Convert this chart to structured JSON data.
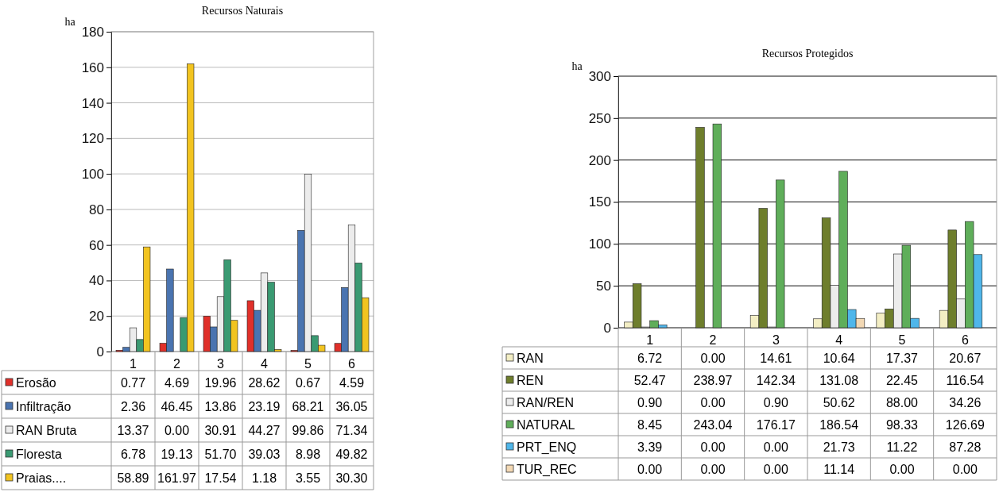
{
  "chart_data": [
    {
      "type": "bar",
      "title": "Recursos Naturais",
      "ylabel": "ha",
      "categories": [
        "1",
        "2",
        "3",
        "4",
        "5",
        "6"
      ],
      "ylim": [
        0,
        180
      ],
      "yticks": [
        0,
        20,
        40,
        60,
        80,
        100,
        120,
        140,
        160,
        180
      ],
      "grid": "y",
      "legend": "bottom",
      "series": [
        {
          "name": "Erosão",
          "color": "#e0302a",
          "values": [
            0.77,
            4.69,
            19.96,
            28.62,
            0.67,
            4.59
          ],
          "value_labels": [
            "0.77",
            "4.69",
            "19.96",
            "28.62",
            "0.67",
            "4.59"
          ]
        },
        {
          "name": "Infiltração",
          "color": "#4a74b0",
          "values": [
            2.36,
            46.45,
            13.86,
            23.19,
            68.21,
            36.05
          ],
          "value_labels": [
            "2.36",
            "46.45",
            "13.86",
            "23.19",
            "68.21",
            "36.05"
          ]
        },
        {
          "name": "RAN Bruta",
          "color": "#ececec",
          "values": [
            13.37,
            0.0,
            30.91,
            44.27,
            99.86,
            71.34
          ],
          "value_labels": [
            "13.37",
            "0.00",
            "30.91",
            "44.27",
            "99.86",
            "71.34"
          ]
        },
        {
          "name": "Floresta",
          "color": "#3a9a72",
          "values": [
            6.78,
            19.13,
            51.7,
            39.03,
            8.98,
            49.82
          ],
          "value_labels": [
            "6.78",
            "19.13",
            "51.70",
            "39.03",
            "8.98",
            "49.82"
          ]
        },
        {
          "name": "Praias....",
          "color": "#f2c420",
          "values": [
            58.89,
            161.97,
            17.54,
            1.18,
            3.55,
            30.3
          ],
          "value_labels": [
            "58.89",
            "161.97",
            "17.54",
            "1.18",
            "3.55",
            "30.30"
          ]
        }
      ]
    },
    {
      "type": "bar",
      "title": "Recursos Protegidos",
      "ylabel": "ha",
      "categories": [
        "1",
        "2",
        "3",
        "4",
        "5",
        "6"
      ],
      "ylim": [
        0,
        300
      ],
      "yticks": [
        0,
        50,
        100,
        150,
        200,
        250,
        300
      ],
      "grid": "y",
      "legend": "bottom",
      "series": [
        {
          "name": "RAN",
          "color": "#f3eec4",
          "values": [
            6.72,
            0.0,
            14.61,
            10.64,
            17.37,
            20.67
          ],
          "value_labels": [
            "6.72",
            "0.00",
            "14.61",
            "10.64",
            "17.37",
            "20.67"
          ]
        },
        {
          "name": "REN",
          "color": "#6e7e2c",
          "values": [
            52.47,
            238.97,
            142.34,
            131.08,
            22.45,
            116.54
          ],
          "value_labels": [
            "52.47",
            "238.97",
            "142.34",
            "131.08",
            "22.45",
            "116.54"
          ]
        },
        {
          "name": "RAN/REN",
          "color": "#ececec",
          "values": [
            0.9,
            0.0,
            0.9,
            50.62,
            88.0,
            34.26
          ],
          "value_labels": [
            "0.90",
            "0.00",
            "0.90",
            "50.62",
            "88.00",
            "34.26"
          ]
        },
        {
          "name": "NATURAL",
          "color": "#5fae5a",
          "values": [
            8.45,
            243.04,
            176.17,
            186.54,
            98.33,
            126.69
          ],
          "value_labels": [
            "8.45",
            "243.04",
            "176.17",
            "186.54",
            "98.33",
            "126.69"
          ]
        },
        {
          "name": "PRT_ENQ",
          "color": "#4fb6ea",
          "values": [
            3.39,
            0.0,
            0.0,
            21.73,
            11.22,
            87.28
          ],
          "value_labels": [
            "3.39",
            "0.00",
            "0.00",
            "21.73",
            "11.22",
            "87.28"
          ]
        },
        {
          "name": "TUR_REC",
          "color": "#f2d8b4",
          "values": [
            0.0,
            0.0,
            0.0,
            11.14,
            0.0,
            0.0
          ],
          "value_labels": [
            "0.00",
            "0.00",
            "0.00",
            "11.14",
            "0.00",
            "0.00"
          ]
        }
      ]
    }
  ]
}
